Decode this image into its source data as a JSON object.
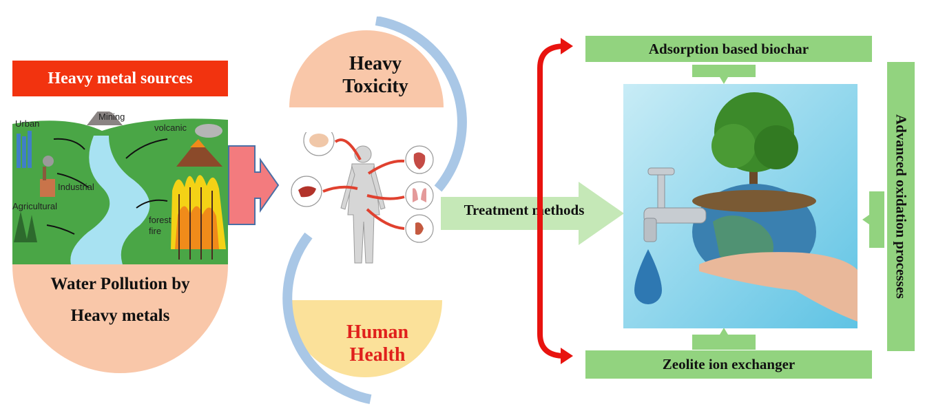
{
  "sources": {
    "title": "Heavy metal sources",
    "labels": {
      "mining": "Mining",
      "urban": "Urban",
      "volcanic": "volcanic",
      "industrial": "Industrial",
      "agricultural": "Agricultural",
      "forest_fire": "forest\nfire"
    },
    "pollution_line1": "Water Pollution by",
    "pollution_line2": "Heavy metals"
  },
  "toxicity": {
    "line1": "Heavy",
    "line2": "Toxicity"
  },
  "health": {
    "line1": "Human",
    "line2": "Health"
  },
  "treatment": {
    "label": "Treatment methods",
    "adsorption": "Adsorption based biochar",
    "zeolite": "Zeolite ion exchanger",
    "aop": "Advanced oxidation processes"
  },
  "colors": {
    "sources_red": "#f2330f",
    "peach": "#f9c7a9",
    "yellow": "#fbe19a",
    "arc_blue": "#a9c7e6",
    "green_box": "#92d37f",
    "red_bracket": "#e8130f",
    "health_text": "#e0201c"
  }
}
